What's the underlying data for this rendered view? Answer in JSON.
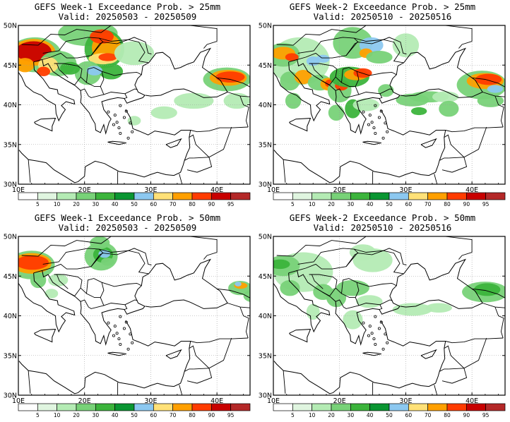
{
  "panels": [
    {
      "title": "GEFS Week-1 Exceedance Prob. > 25mm",
      "valid": "Valid: 20250503 - 20250509"
    },
    {
      "title": "GEFS Week-2 Exceedance Prob. > 25mm",
      "valid": "Valid: 20250510 - 20250516"
    },
    {
      "title": "GEFS Week-1 Exceedance Prob. > 50mm",
      "valid": "Valid: 20250503 - 20250509"
    },
    {
      "title": "GEFS Week-2 Exceedance Prob. > 50mm",
      "valid": "Valid: 20250510 - 20250516"
    }
  ],
  "lat_labels": [
    "50N",
    "45N",
    "40N",
    "35N",
    "30N"
  ],
  "lon_labels": [
    "10E",
    "20E",
    "30E",
    "40E"
  ],
  "colorbar": {
    "labels": [
      "5",
      "10",
      "20",
      "30",
      "40",
      "50",
      "60",
      "70",
      "80",
      "90",
      "95"
    ],
    "colors": [
      "#ffffff",
      "#e0f5e0",
      "#b4ebb4",
      "#78d278",
      "#3cb43c",
      "#0a9632",
      "#8cc8f0",
      "#ffe178",
      "#ffa000",
      "#ff3c00",
      "#c80000",
      "#b42828"
    ]
  }
}
